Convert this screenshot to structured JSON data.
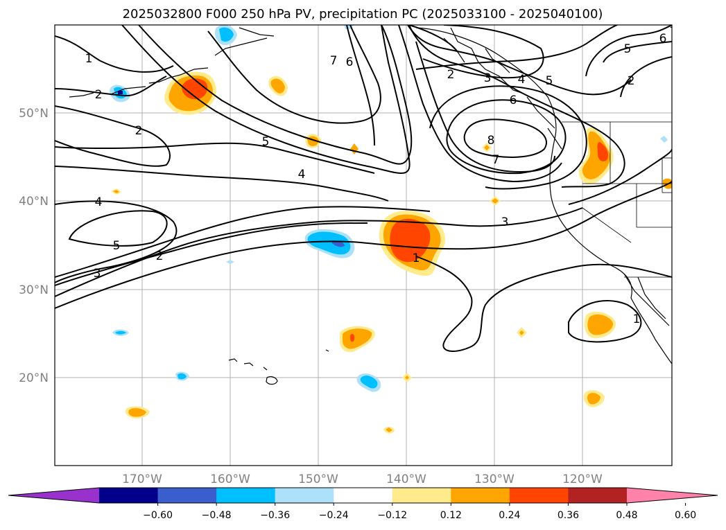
{
  "title": "2025032800 F000 250 hPa PV, precipitation PC (2025033100 - 2025040100)",
  "lat_ticks": [
    "50°N",
    "40°N",
    "30°N",
    "20°N"
  ],
  "lon_ticks": [
    "170°W",
    "160°W",
    "150°W",
    "140°W",
    "130°W",
    "120°W"
  ],
  "colorbar": {
    "labels": [
      "−0.60",
      "−0.48",
      "−0.36",
      "−0.24",
      "−0.12",
      "0.12",
      "0.24",
      "0.36",
      "0.48",
      "0.60"
    ],
    "colors": [
      "#9932CC",
      "#00008B",
      "#3A5FCD",
      "#00BFFF",
      "#ADE1FA",
      "#FFFFFF",
      "#FFEA8C",
      "#FFA500",
      "#FF4500",
      "#B22222",
      "#FF82AB"
    ]
  },
  "contour_labels": [
    "1",
    "2",
    "2",
    "2",
    "2",
    "2",
    "3",
    "3",
    "3",
    "4",
    "4",
    "4",
    "5",
    "5",
    "5",
    "5",
    "6",
    "6",
    "6",
    "7",
    "7",
    "8",
    "1",
    "1",
    "1"
  ]
}
